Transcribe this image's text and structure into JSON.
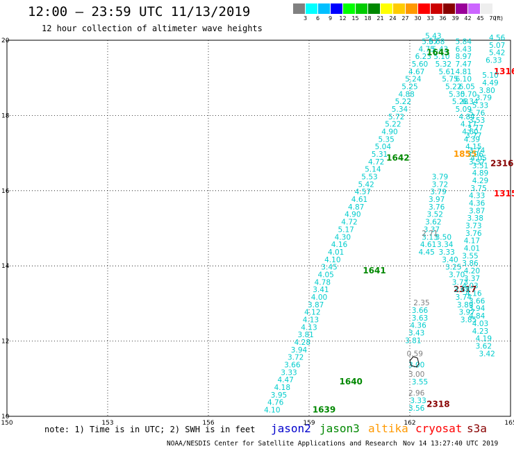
{
  "header": {
    "title": "12:00 – 23:59 UTC 11/13/2019",
    "subtitle": "12 hour collection of altimeter wave heights"
  },
  "color_legend": {
    "unit": "(ft)",
    "colors": [
      "#808080",
      "#00ffff",
      "#00bfff",
      "#0000ff",
      "#00ff00",
      "#00cc00",
      "#008800",
      "#ffff00",
      "#ffcc00",
      "#ff9900",
      "#ff0000",
      "#cc0000",
      "#880000",
      "#990099",
      "#cc66ff",
      "#eeeeee"
    ],
    "labels": [
      "3",
      "6",
      "9",
      "12",
      "15",
      "18",
      "21",
      "24",
      "27",
      "30",
      "33",
      "36",
      "39",
      "42",
      "45",
      "70"
    ]
  },
  "satellites": [
    {
      "name": "jason2",
      "color": "#0000cc"
    },
    {
      "name": "jason3",
      "color": "#008800"
    },
    {
      "name": "altika",
      "color": "#ff9900"
    },
    {
      "name": "cryosat",
      "color": "#ff0000"
    },
    {
      "name": "s3a",
      "color": "#880000"
    }
  ],
  "note": "note: 1) Time is in UTC; 2) SWH is in feet",
  "footer": {
    "left": "NOAA/NESDIS Center for Satellite Applications and Research",
    "right": "Nov 14 13:27:40 UTC 2019"
  },
  "chart_data": {
    "type": "scatter",
    "title": "12:00 – 23:59 UTC 11/13/2019",
    "xlim": [
      150,
      165
    ],
    "ylim": [
      10,
      20
    ],
    "xticks": [
      "150",
      "153",
      "156",
      "159",
      "162",
      "165"
    ],
    "yticks": [
      "10",
      "12",
      "14",
      "16",
      "18",
      "20"
    ],
    "grid": true,
    "tracks": [
      {
        "id": "1639",
        "pass_label_pos": [
          159.1,
          10.1
        ],
        "color": "#00cccc",
        "points": [
          [
            157.9,
            10.1,
            "4.10"
          ],
          [
            158.0,
            10.3,
            "4.76"
          ],
          [
            158.1,
            10.5,
            "3.95"
          ],
          [
            158.2,
            10.7,
            "4.18"
          ],
          [
            158.3,
            10.9,
            "4.47"
          ],
          [
            158.4,
            11.1,
            "3.33"
          ],
          [
            158.5,
            11.3,
            "3.66"
          ],
          [
            158.6,
            11.5,
            "3.72"
          ],
          [
            158.7,
            11.7,
            "3.94"
          ],
          [
            158.8,
            11.9,
            "4.28"
          ],
          [
            158.9,
            12.1,
            "3.81"
          ],
          [
            159.0,
            12.3,
            "4.13"
          ],
          [
            159.05,
            12.5,
            "4.13"
          ],
          [
            159.1,
            12.7,
            "4.12"
          ],
          [
            159.2,
            12.9,
            "3.87"
          ],
          [
            159.3,
            13.1,
            "4.00"
          ],
          [
            159.35,
            13.3,
            "3.41"
          ],
          [
            159.4,
            13.5,
            "4.78"
          ],
          [
            159.5,
            13.7,
            "4.05"
          ],
          [
            159.6,
            13.9,
            "3.45"
          ]
        ]
      },
      {
        "id": "1640",
        "pass_label_pos": [
          159.9,
          10.85
        ],
        "color": "#00cccc",
        "points": []
      },
      {
        "id": "1641",
        "pass_label_pos": [
          160.6,
          13.8
        ],
        "color": "#00cccc",
        "points": [
          [
            159.7,
            14.1,
            "4.10"
          ],
          [
            159.8,
            14.3,
            "4.01"
          ],
          [
            159.9,
            14.5,
            "4.16"
          ],
          [
            160.0,
            14.7,
            "4.30"
          ],
          [
            160.1,
            14.9,
            "5.17"
          ],
          [
            160.2,
            15.1,
            "4.72"
          ],
          [
            160.3,
            15.3,
            "4.90"
          ],
          [
            160.4,
            15.5,
            "4.87"
          ],
          [
            160.5,
            15.7,
            "4.61"
          ],
          [
            160.6,
            15.9,
            "4.57"
          ]
        ]
      },
      {
        "id": "1642",
        "pass_label_pos": [
          161.3,
          16.8
        ],
        "color": "#00cccc",
        "points": [
          [
            160.7,
            16.1,
            "5.42"
          ],
          [
            160.8,
            16.3,
            "5.53"
          ],
          [
            160.9,
            16.5,
            "5.14"
          ],
          [
            161.0,
            16.7,
            "4.72"
          ],
          [
            161.1,
            16.9,
            "5.31"
          ],
          [
            161.2,
            17.1,
            "5.04"
          ],
          [
            161.3,
            17.3,
            "5.35"
          ],
          [
            161.4,
            17.5,
            "4.90"
          ],
          [
            161.5,
            17.7,
            "5.22"
          ],
          [
            161.6,
            17.9,
            "5.72"
          ],
          [
            161.7,
            18.1,
            "5.34"
          ],
          [
            161.8,
            18.3,
            "5.22"
          ],
          [
            161.9,
            18.5,
            "4.88"
          ],
          [
            162.0,
            18.7,
            "5.25"
          ],
          [
            162.1,
            18.9,
            "5.24"
          ],
          [
            162.2,
            19.1,
            "4.67"
          ],
          [
            162.3,
            19.3,
            "5.60"
          ],
          [
            162.4,
            19.5,
            "6.23"
          ],
          [
            162.5,
            19.7,
            "4.75"
          ],
          [
            162.6,
            19.9,
            "5.67"
          ]
        ]
      },
      {
        "id": "1643",
        "pass_label_pos": [
          162.5,
          19.6
        ],
        "color": "#00cccc",
        "points": [
          [
            162.7,
            20.05,
            "5.43"
          ],
          [
            162.8,
            19.9,
            "5.68"
          ],
          [
            162.9,
            19.7,
            "5.43"
          ],
          [
            162.95,
            19.5,
            "5.10"
          ],
          [
            163.0,
            19.3,
            "5.32"
          ],
          [
            163.1,
            19.1,
            "5.61"
          ],
          [
            163.2,
            18.9,
            "5.75"
          ],
          [
            163.3,
            18.7,
            "5.22"
          ],
          [
            163.4,
            18.5,
            "5.30"
          ],
          [
            163.5,
            18.3,
            "5.28"
          ],
          [
            163.6,
            18.1,
            "5.09"
          ],
          [
            163.7,
            17.9,
            "4.84"
          ],
          [
            163.75,
            17.7,
            "4.17"
          ],
          [
            163.8,
            17.5,
            "4.60"
          ],
          [
            163.85,
            17.3,
            "4.39"
          ],
          [
            163.9,
            17.1,
            "4.15"
          ],
          [
            163.95,
            16.9,
            "3.96"
          ],
          [
            164.0,
            16.7,
            "3.57"
          ]
        ]
      },
      {
        "id": "2317",
        "pass_label_pos": [
          163.3,
          13.3
        ],
        "color": "#880000",
        "points": []
      },
      {
        "id": "2318",
        "pass_label_pos": [
          162.5,
          10.25
        ],
        "color": "#880000",
        "points": []
      },
      {
        "id": "2316",
        "pass_label_pos": [
          164.4,
          16.65
        ],
        "color": "#880000",
        "points": []
      },
      {
        "id": "1316",
        "pass_label_pos": [
          164.5,
          19.1
        ],
        "color": "#ff0000",
        "points": []
      },
      {
        "id": "1315",
        "pass_label_pos": [
          164.5,
          15.85
        ],
        "color": "#ff0000",
        "points": []
      },
      {
        "id": "1855",
        "pass_label_pos": [
          163.3,
          16.9
        ],
        "color": "#ff9900",
        "points": []
      }
    ],
    "annotations": [
      {
        "text": "0.59",
        "x": 162.15,
        "y": 11.6,
        "color": "#808080"
      },
      {
        "text": "2.35",
        "x": 162.35,
        "y": 12.95,
        "color": "#808080"
      },
      {
        "text": "2.71",
        "x": 162.6,
        "y": 14.8,
        "color": "#808080"
      },
      {
        "text": "3.00",
        "x": 162.2,
        "y": 11.05,
        "color": "#808080"
      },
      {
        "text": "2.96",
        "x": 162.2,
        "y": 10.55,
        "color": "#808080"
      }
    ]
  }
}
